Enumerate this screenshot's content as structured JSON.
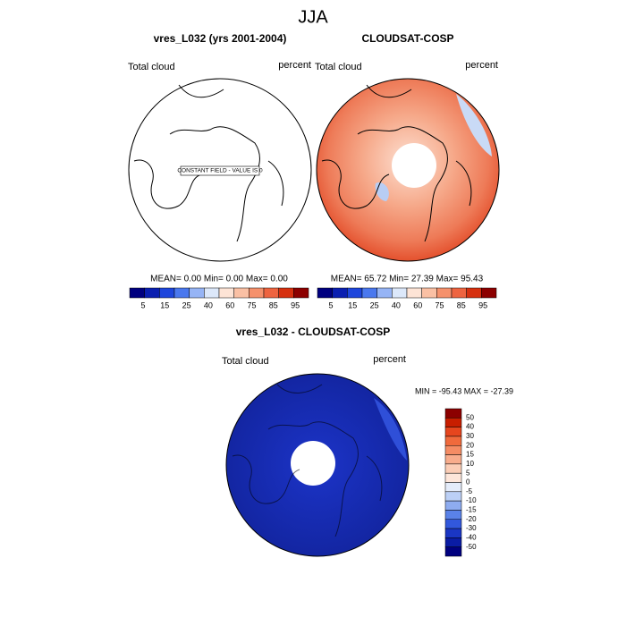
{
  "title": "JJA",
  "panels": [
    {
      "title": "vres_L032 (yrs 2001-2004)",
      "left_label": "Total cloud",
      "right_label": "percent",
      "note": "CONSTANT FIELD - VALUE IS 0",
      "stats": "MEAN=   0.00  Min=   0.00  Max=   0.00",
      "colorbar_labels": [
        "5",
        "15",
        "25",
        "40",
        "60",
        "75",
        "85",
        "95"
      ]
    },
    {
      "title": "CLOUDSAT-COSP",
      "left_label": "Total cloud",
      "right_label": "percent",
      "stats": "MEAN=  65.72  Min=  27.39  Max=  95.43",
      "colorbar_labels": [
        "5",
        "15",
        "25",
        "40",
        "60",
        "75",
        "85",
        "95"
      ]
    }
  ],
  "difference": {
    "title": "vres_L032 - CLOUDSAT-COSP",
    "left_label": "Total cloud",
    "right_label": "percent",
    "stats": "MIN = -95.43 MAX = -27.39",
    "colorbar_labels": [
      "50",
      "40",
      "30",
      "20",
      "15",
      "10",
      "5",
      "0",
      "-5",
      "-10",
      "-15",
      "-20",
      "-30",
      "-40",
      "-50"
    ]
  }
}
